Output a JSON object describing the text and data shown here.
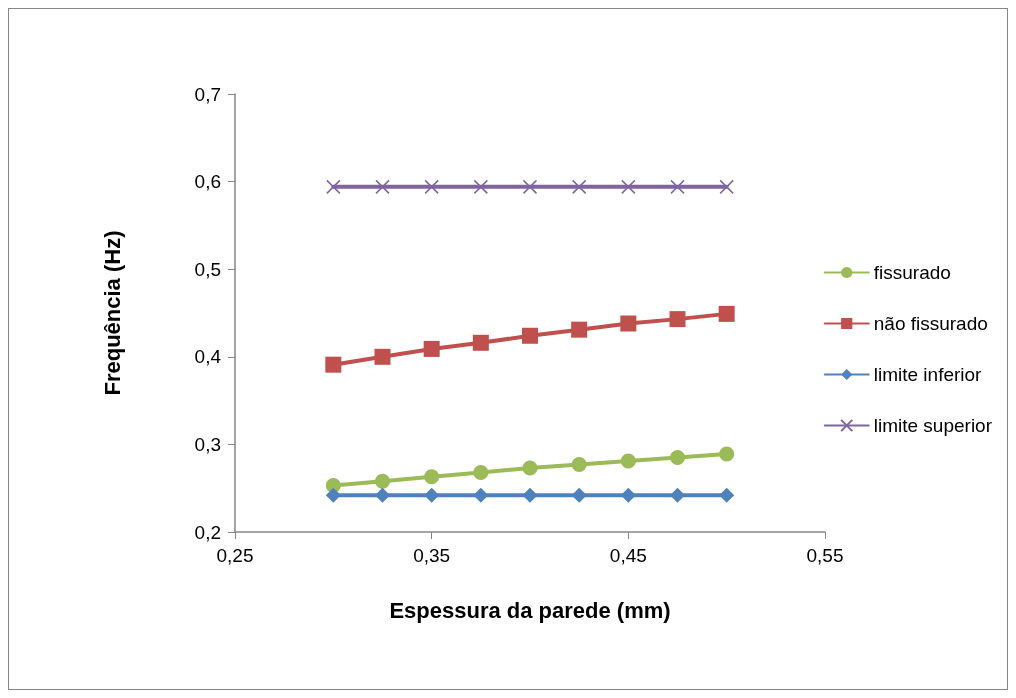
{
  "chart_data": {
    "type": "line",
    "xlabel": "Espessura da parede (mm)",
    "ylabel": "Frequência (Hz)",
    "x": [
      0.3,
      0.325,
      0.35,
      0.375,
      0.4,
      0.425,
      0.45,
      0.475,
      0.5
    ],
    "xlim": [
      0.25,
      0.55
    ],
    "xticks": [
      {
        "value": 0.25,
        "label": "0,25"
      },
      {
        "value": 0.35,
        "label": "0,35"
      },
      {
        "value": 0.45,
        "label": "0,45"
      },
      {
        "value": 0.55,
        "label": "0,55"
      }
    ],
    "ylim": [
      0.2,
      0.7
    ],
    "yticks": [
      {
        "value": 0.2,
        "label": "0,2"
      },
      {
        "value": 0.3,
        "label": "0,3"
      },
      {
        "value": 0.4,
        "label": "0,4"
      },
      {
        "value": 0.5,
        "label": "0,5"
      },
      {
        "value": 0.6,
        "label": "0,6"
      },
      {
        "value": 0.7,
        "label": "0,7"
      }
    ],
    "grid": false,
    "legend": "right",
    "line_style": "solid",
    "series": [
      {
        "name": "fissurado",
        "color": "#9bbb59",
        "marker": "circle",
        "values": [
          0.253,
          0.258,
          0.263,
          0.268,
          0.273,
          0.277,
          0.281,
          0.285,
          0.289
        ]
      },
      {
        "name": "não fissurado",
        "color": "#c0504d",
        "marker": "square",
        "values": [
          0.391,
          0.4,
          0.409,
          0.416,
          0.424,
          0.431,
          0.438,
          0.443,
          0.449
        ]
      },
      {
        "name": "limite inferior",
        "color": "#4f81bd",
        "marker": "diamond",
        "values": [
          0.242,
          0.242,
          0.242,
          0.242,
          0.242,
          0.242,
          0.242,
          0.242,
          0.242
        ]
      },
      {
        "name": "limite superior",
        "color": "#8064a2",
        "marker": "cross",
        "values": [
          0.594,
          0.594,
          0.594,
          0.594,
          0.594,
          0.594,
          0.594,
          0.594,
          0.594
        ]
      }
    ]
  }
}
